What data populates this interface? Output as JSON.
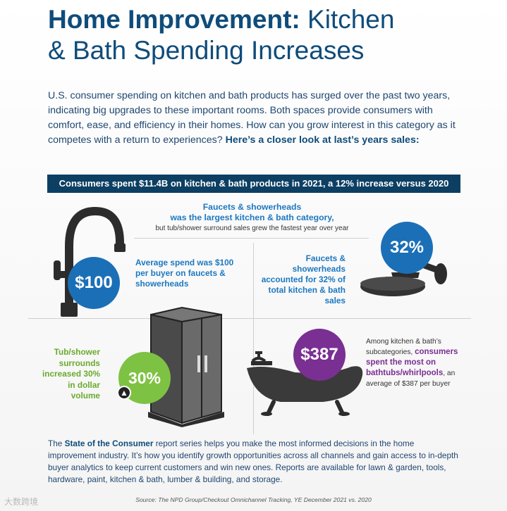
{
  "title": {
    "bold": "Home Improvement:",
    "rest_line1": " Kitchen",
    "rest_line2": "& Bath Spending Increases"
  },
  "intro": {
    "text": "U.S. consumer spending on kitchen and bath products has surged over the past two years, indicating big upgrades to these important rooms. Both spaces provide consumers with comfort, ease, and efficiency in their homes. How can you grow interest in this category as it competes with a return to experiences? ",
    "bold": "Here’s a closer look at last’s years sales:"
  },
  "banner": "Consumers spent $11.4B on kitchen & bath products in 2021, a 12% increase versus 2020",
  "faucets_header": {
    "line1": "Faucets & showerheads",
    "line2": "was the largest kitchen & bath category,",
    "sub": "but tub/shower surround sales grew the fastest year over year"
  },
  "stats": {
    "avg_spend_value": "$100",
    "avg_spend_text": "Average spend was $100 per buyer on faucets & showerheads",
    "share_value": "32%",
    "share_text": "Faucets & showerheads accounted for 32% of total kitchen & bath sales",
    "tub_value": "30%",
    "tub_text": "Tub/shower surrounds increased 30% in dollar volume",
    "bathtub_value": "$387",
    "bathtub_pre": "Among kitchen & bath’s subcategories, ",
    "bathtub_bold": "consumers spent the most on bathtubs/whirlpools",
    "bathtub_post": ", an average of $387 per buyer"
  },
  "footer": {
    "pre": "The ",
    "bold": "State of the Consumer",
    "post": " report series helps you make the most informed decisions in the home improvement industry. It’s how you identify growth opportunities across all channels and gain access to in-depth buyer analytics to keep current customers and win new ones. Reports are available for lawn & garden, tools, hardware, paint, kitchen & bath, lumber & building, and storage."
  },
  "source": "Source: The NPD Group/Checkout Omnichannel Tracking, YE December 2021 vs. 2020",
  "watermark": "大数跨境",
  "colors": {
    "navy": "#0d3f63",
    "blue": "#1b6fb7",
    "green": "#7ec243",
    "purple": "#7a2f92"
  },
  "icons": [
    "faucet-icon",
    "showerhead-icon",
    "shower-enclosure-icon",
    "bathtub-icon",
    "arrow-up-icon"
  ]
}
